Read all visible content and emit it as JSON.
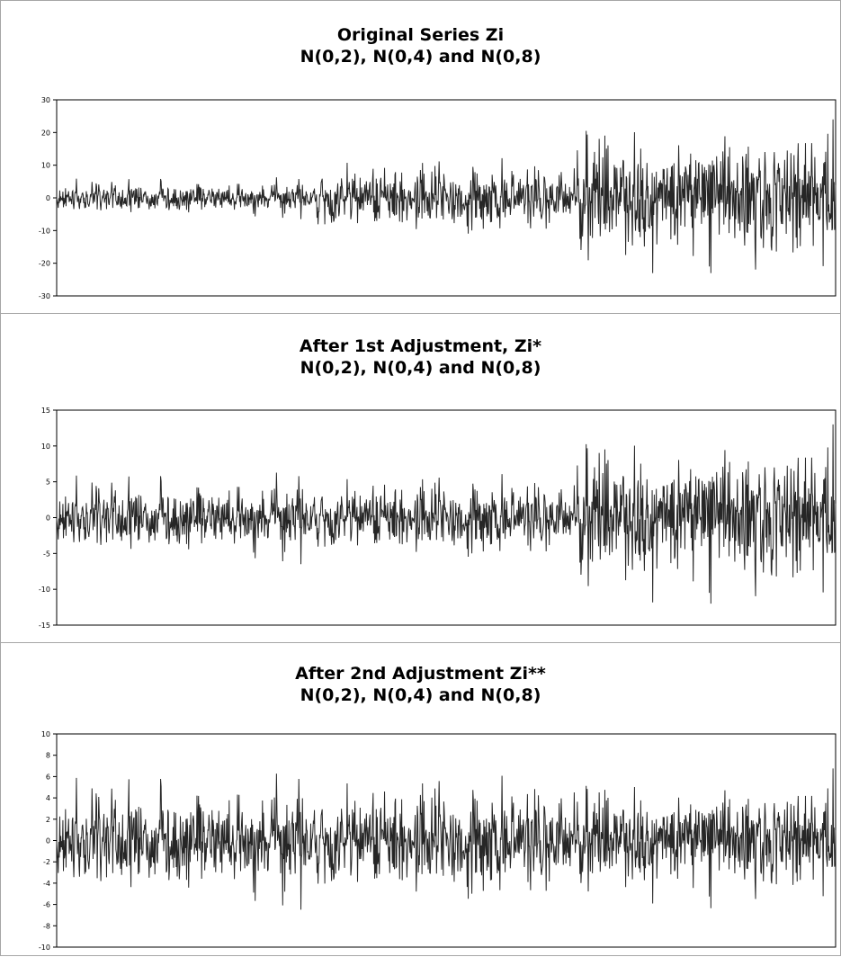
{
  "chart_data": [
    {
      "type": "line",
      "title": "Original Series Zi",
      "subtitle": "N(0,2), N(0,4) and N(0,8)",
      "xlabel": "",
      "ylabel": "",
      "ylim": [
        -30,
        30
      ],
      "y_ticks": [
        "30",
        "20",
        "10",
        "0",
        "-10",
        "-20",
        "-30"
      ],
      "grid": false,
      "legend": "none",
      "line_color": "#262626",
      "n_points": 1500,
      "segments": [
        {
          "label": "N(0,2)",
          "x_start": 0,
          "x_end": 500,
          "sd": 2
        },
        {
          "label": "N(0,4)",
          "x_start": 500,
          "x_end": 1000,
          "sd": 4
        },
        {
          "label": "N(0,8)",
          "x_start": 1000,
          "x_end": 1500,
          "sd": 8
        }
      ],
      "observed_range": {
        "min": -23,
        "max": 24
      }
    },
    {
      "type": "line",
      "title": "After 1st Adjustment, Zi*",
      "subtitle": "N(0,2), N(0,4) and N(0,8)",
      "xlabel": "",
      "ylabel": "",
      "ylim": [
        -15,
        15
      ],
      "y_ticks": [
        "15",
        "10",
        "5",
        "0",
        "-5",
        "-10",
        "-15"
      ],
      "grid": false,
      "legend": "none",
      "line_color": "#262626",
      "n_points": 1500,
      "segments": [
        {
          "label": "N(0,2)",
          "x_start": 0,
          "x_end": 500,
          "sd": 2
        },
        {
          "label": "N(0,4)",
          "x_start": 500,
          "x_end": 1000,
          "sd": 2
        },
        {
          "label": "N(0,8)",
          "x_start": 1000,
          "x_end": 1500,
          "sd": 4
        }
      ],
      "observed_range": {
        "min": -12,
        "max": 13
      }
    },
    {
      "type": "line",
      "title": "After 2nd Adjustment Zi**",
      "subtitle": "N(0,2), N(0,4) and N(0,8)",
      "xlabel": "",
      "ylabel": "",
      "ylim": [
        -10,
        10
      ],
      "y_ticks": [
        "10",
        "8",
        "6",
        "4",
        "2",
        "0",
        "-2",
        "-4",
        "-6",
        "-8",
        "-10"
      ],
      "grid": false,
      "legend": "none",
      "line_color": "#262626",
      "n_points": 1500,
      "segments": [
        {
          "label": "N(0,2)",
          "x_start": 0,
          "x_end": 500,
          "sd": 2
        },
        {
          "label": "N(0,4)",
          "x_start": 500,
          "x_end": 1000,
          "sd": 2
        },
        {
          "label": "N(0,8)",
          "x_start": 1000,
          "x_end": 1500,
          "sd": 2
        }
      ],
      "observed_range": {
        "min": -7.5,
        "max": 8
      }
    }
  ]
}
